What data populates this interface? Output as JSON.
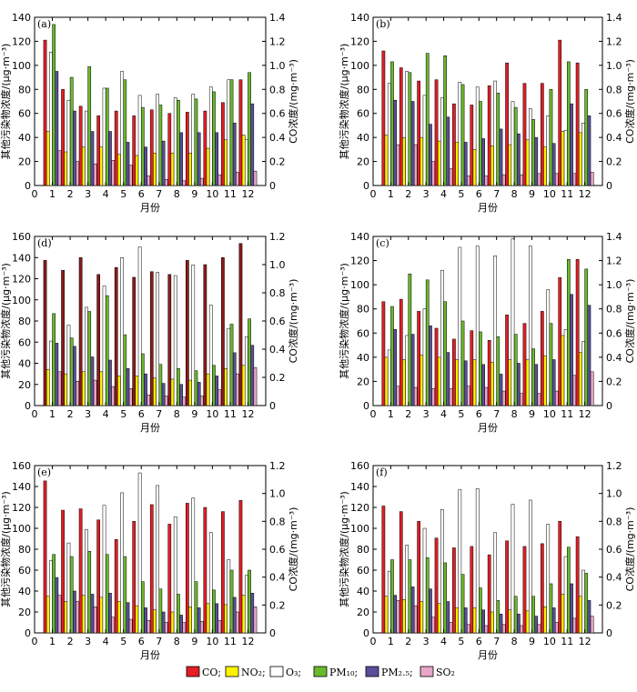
{
  "xlabel": "月份",
  "ylabel_left": "其他污染物浓度/(μg·m⁻³)",
  "ylabel_right": "CO浓度/(mg·m⁻³)",
  "months": [
    "1",
    "2",
    "3",
    "4",
    "5",
    "6",
    "7",
    "8",
    "9",
    "10",
    "11",
    "12"
  ],
  "legend": [
    {
      "key": "CO",
      "label": "CO;",
      "color": "#e31e24"
    },
    {
      "key": "NO2",
      "label": "NO₂;",
      "color": "#fff200"
    },
    {
      "key": "O3",
      "label": "O₃;",
      "color": "#ffffff"
    },
    {
      "key": "PM10",
      "label": "PM₁₀;",
      "color": "#6ab92d"
    },
    {
      "key": "PM25",
      "label": "PM₂.₅;",
      "color": "#5b4e9b"
    },
    {
      "key": "SO2",
      "label": "SO₂",
      "color": "#e8a6c8"
    }
  ],
  "chart_data": [
    {
      "type": "bar",
      "panel_label": "(a)",
      "ylim_left": [
        0,
        140
      ],
      "ylim_right": [
        0,
        1.4
      ],
      "co_color": "#e31e24",
      "x_ticks": [
        "0",
        "1",
        "2",
        "3",
        "4",
        "5",
        "6",
        "7",
        "8",
        "9",
        "10",
        "11",
        "12"
      ],
      "y_left_ticks": [
        "0",
        "20",
        "40",
        "60",
        "80",
        "100",
        "120",
        "140"
      ],
      "y_right_ticks": [
        "0",
        "0.2",
        "0.4",
        "0.6",
        "0.8",
        "1.0",
        "1.2",
        "1.4"
      ],
      "series": {
        "CO": [
          1.21,
          0.8,
          0.66,
          0.58,
          0.62,
          0.58,
          0.63,
          0.6,
          0.61,
          0.62,
          0.69,
          0.88
        ],
        "NO2": [
          45,
          28,
          32,
          32,
          26,
          25,
          27,
          27,
          27,
          31,
          38,
          42
        ],
        "O3": [
          111,
          71,
          62,
          81,
          95,
          75,
          76,
          73,
          76,
          82,
          88,
          38
        ],
        "PM10": [
          134,
          90,
          99,
          81,
          88,
          65,
          67,
          71,
          72,
          78,
          88,
          94
        ],
        "PM25": [
          95,
          62,
          45,
          45,
          36,
          32,
          37,
          44,
          44,
          44,
          52,
          68
        ],
        "SO2": [
          29,
          20,
          18,
          21,
          17,
          8,
          5,
          4,
          6,
          9,
          11,
          12
        ]
      }
    },
    {
      "type": "bar",
      "panel_label": "(b)",
      "ylim_left": [
        0,
        140
      ],
      "ylim_right": [
        0,
        1.4
      ],
      "co_color": "#e31e24",
      "x_ticks": [
        "0",
        "1",
        "2",
        "3",
        "4",
        "5",
        "6",
        "7",
        "8",
        "9",
        "10",
        "11",
        "12"
      ],
      "y_left_ticks": [
        "0",
        "20",
        "40",
        "60",
        "80",
        "100",
        "120",
        "140"
      ],
      "y_right_ticks": [
        "0",
        "0.2",
        "0.4",
        "0.6",
        "0.8",
        "1.0",
        "1.2",
        "1.4"
      ],
      "series": {
        "CO": [
          1.12,
          0.98,
          0.87,
          0.88,
          0.68,
          0.67,
          0.83,
          1.02,
          0.85,
          0.85,
          1.21,
          1.02
        ],
        "NO2": [
          42,
          40,
          40,
          37,
          36,
          30,
          33,
          34,
          38,
          32,
          45,
          44
        ],
        "O3": [
          85,
          95,
          75,
          73,
          86,
          82,
          87,
          70,
          64,
          58,
          46,
          52
        ],
        "PM10": [
          103,
          94,
          110,
          108,
          84,
          70,
          77,
          65,
          55,
          80,
          103,
          80
        ],
        "PM25": [
          71,
          70,
          51,
          57,
          36,
          39,
          47,
          43,
          40,
          35,
          68,
          58
        ],
        "SO2": [
          34,
          34,
          20,
          14,
          8,
          8,
          9,
          9,
          10,
          10,
          10,
          11
        ]
      }
    },
    {
      "type": "bar",
      "panel_label": "(d)",
      "ylim_left": [
        0,
        160
      ],
      "ylim_right": [
        0,
        1.2
      ],
      "co_color": "#8b1a1a",
      "x_ticks": [
        "0",
        "1",
        "2",
        "3",
        "4",
        "5",
        "6",
        "7",
        "8",
        "9",
        "10",
        "11",
        "12"
      ],
      "y_left_ticks": [
        "0",
        "20",
        "40",
        "60",
        "80",
        "100",
        "120",
        "140",
        "160"
      ],
      "y_right_ticks": [
        "0",
        "0.2",
        "0.4",
        "0.6",
        "0.8",
        "1.0",
        "1.2"
      ],
      "series": {
        "CO": [
          1.03,
          0.96,
          1.05,
          0.93,
          0.98,
          0.91,
          0.95,
          0.93,
          1.03,
          1.0,
          1.05,
          1.15
        ],
        "NO2": [
          34,
          30,
          32,
          32,
          28,
          28,
          26,
          25,
          24,
          30,
          35,
          38
        ],
        "O3": [
          61,
          76,
          93,
          113,
          140,
          150,
          126,
          123,
          133,
          95,
          73,
          65
        ],
        "PM10": [
          87,
          64,
          89,
          104,
          67,
          49,
          39,
          35,
          33,
          38,
          77,
          82
        ],
        "PM25": [
          59,
          56,
          46,
          43,
          35,
          30,
          21,
          20,
          22,
          28,
          50,
          57
        ],
        "SO2": [
          32,
          23,
          24,
          18,
          16,
          10,
          9,
          8,
          9,
          15,
          30,
          36
        ]
      }
    },
    {
      "type": "bar",
      "panel_label": "(c)",
      "ylim_left": [
        0,
        140
      ],
      "ylim_right": [
        0,
        1.4
      ],
      "co_color": "#e31e24",
      "x_ticks": [
        "0",
        "1",
        "2",
        "3",
        "4",
        "5",
        "6",
        "7",
        "8",
        "9",
        "10",
        "11",
        "12"
      ],
      "y_left_ticks": [
        "0",
        "20",
        "40",
        "60",
        "80",
        "100",
        "120",
        "140"
      ],
      "y_right_ticks": [
        "0",
        "0.2",
        "0.4",
        "0.6",
        "0.8",
        "1.0",
        "1.2",
        "1.4"
      ],
      "series": {
        "CO": [
          0.86,
          0.88,
          0.78,
          0.64,
          0.55,
          0.62,
          0.54,
          0.75,
          0.68,
          0.78,
          1.06,
          1.21
        ],
        "NO2": [
          40,
          38,
          42,
          40,
          38,
          38,
          36,
          38,
          38,
          41,
          58,
          44
        ],
        "O3": [
          46,
          58,
          80,
          112,
          131,
          132,
          124,
          138,
          132,
          96,
          63,
          53
        ],
        "PM10": [
          82,
          109,
          104,
          86,
          70,
          61,
          57,
          59,
          47,
          68,
          121,
          113
        ],
        "PM25": [
          63,
          59,
          66,
          44,
          37,
          34,
          26,
          35,
          34,
          38,
          92,
          83
        ],
        "SO2": [
          16,
          15,
          14,
          14,
          16,
          15,
          12,
          10,
          10,
          12,
          25,
          28
        ]
      }
    },
    {
      "type": "bar",
      "panel_label": "(e)",
      "ylim_left": [
        0,
        160
      ],
      "ylim_right": [
        0,
        1.2
      ],
      "co_color": "#e31e24",
      "x_ticks": [
        "0",
        "1",
        "2",
        "3",
        "4",
        "5",
        "6",
        "7",
        "8",
        "9",
        "10",
        "11",
        "12"
      ],
      "y_left_ticks": [
        "0",
        "20",
        "40",
        "60",
        "80",
        "100",
        "120",
        "140",
        "160"
      ],
      "y_right_ticks": [
        "0",
        "0.2",
        "0.4",
        "0.6",
        "0.8",
        "1.0",
        "1.2"
      ],
      "series": {
        "CO": [
          1.09,
          0.88,
          0.89,
          0.81,
          0.67,
          0.8,
          0.92,
          0.78,
          0.93,
          0.9,
          0.87,
          0.95
        ],
        "NO2": [
          35,
          30,
          36,
          34,
          30,
          26,
          22,
          20,
          25,
          28,
          27,
          36
        ],
        "O3": [
          69,
          86,
          99,
          122,
          134,
          153,
          141,
          111,
          129,
          96,
          70,
          55
        ],
        "PM10": [
          75,
          73,
          78,
          75,
          73,
          49,
          42,
          37,
          49,
          41,
          60,
          60
        ],
        "PM25": [
          53,
          40,
          37,
          38,
          29,
          24,
          20,
          17,
          24,
          28,
          34,
          38
        ],
        "SO2": [
          36,
          30,
          25,
          15,
          13,
          12,
          10,
          10,
          11,
          12,
          20,
          25
        ]
      }
    },
    {
      "type": "bar",
      "panel_label": "(f)",
      "ylim_left": [
        0,
        160
      ],
      "ylim_right": [
        0,
        1.2
      ],
      "co_color": "#e31e24",
      "x_ticks": [
        "0",
        "1",
        "2",
        "3",
        "4",
        "5",
        "6",
        "7",
        "8",
        "9",
        "10",
        "11",
        "12"
      ],
      "y_left_ticks": [
        "0",
        "20",
        "40",
        "60",
        "80",
        "100",
        "120",
        "140",
        "160"
      ],
      "y_right_ticks": [
        "0",
        "0.2",
        "0.4",
        "0.6",
        "0.8",
        "1.0",
        "1.2"
      ],
      "series": {
        "CO": [
          0.91,
          0.87,
          0.8,
          0.68,
          0.61,
          0.62,
          0.56,
          0.66,
          0.62,
          0.64,
          0.8,
          0.69
        ],
        "NO2": [
          35,
          32,
          30,
          28,
          24,
          24,
          20,
          22,
          21,
          25,
          37,
          35
        ],
        "O3": [
          59,
          84,
          100,
          118,
          137,
          138,
          96,
          123,
          127,
          104,
          73,
          60
        ],
        "PM10": [
          70,
          70,
          72,
          67,
          56,
          43,
          31,
          35,
          35,
          47,
          82,
          57
        ],
        "PM25": [
          36,
          44,
          42,
          30,
          24,
          22,
          18,
          18,
          16,
          24,
          47,
          31
        ],
        "SO2": [
          31,
          26,
          15,
          10,
          8,
          7,
          8,
          7,
          8,
          10,
          14,
          16
        ]
      }
    }
  ]
}
